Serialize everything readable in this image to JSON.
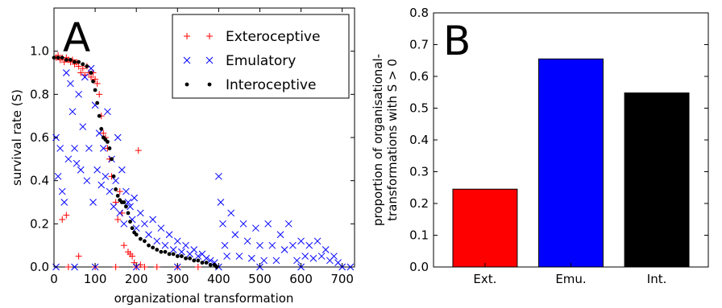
{
  "chart_data": [
    {
      "type": "scatter",
      "panel_label": "A",
      "xlabel": "organizational transformation",
      "ylabel": "survival rate (S)",
      "xlim": [
        0,
        730
      ],
      "ylim": [
        0,
        1.2
      ],
      "x_ticks": [
        "0",
        "100",
        "200",
        "300",
        "400",
        "500",
        "600",
        "700"
      ],
      "y_ticks": [
        "0.0",
        "0.2",
        "0.4",
        "0.6",
        "0.8",
        "1.0"
      ],
      "legend_position": "top-right",
      "series": [
        {
          "name": "Exteroceptive",
          "marker": "+",
          "color": "#ff0000",
          "points": [
            [
              5,
              0.97
            ],
            [
              10,
              0.98
            ],
            [
              15,
              0.96
            ],
            [
              20,
              0.97
            ],
            [
              25,
              0.95
            ],
            [
              30,
              0.97
            ],
            [
              35,
              0.96
            ],
            [
              40,
              0.95
            ],
            [
              45,
              0.96
            ],
            [
              50,
              0.94
            ],
            [
              55,
              0.95
            ],
            [
              60,
              0.93
            ],
            [
              65,
              0.9
            ],
            [
              70,
              0.92
            ],
            [
              75,
              0.89
            ],
            [
              80,
              0.93
            ],
            [
              85,
              0.9
            ],
            [
              90,
              0.88
            ],
            [
              95,
              0.9
            ],
            [
              100,
              0.87
            ],
            [
              105,
              0.85
            ],
            [
              110,
              0.8
            ],
            [
              115,
              0.7
            ],
            [
              120,
              0.62
            ],
            [
              125,
              0.6
            ],
            [
              130,
              0.55
            ],
            [
              135,
              0.5
            ],
            [
              140,
              0.42
            ],
            [
              150,
              0.3
            ],
            [
              155,
              0.22
            ],
            [
              160,
              0.35
            ],
            [
              165,
              0.25
            ],
            [
              170,
              0.1
            ],
            [
              180,
              0.07
            ],
            [
              185,
              0.06
            ],
            [
              190,
              0.05
            ],
            [
              195,
              0.02
            ],
            [
              205,
              0.54
            ],
            [
              210,
              0.01
            ],
            [
              220,
              0.0
            ],
            [
              30,
              0.24
            ],
            [
              20,
              0.22
            ],
            [
              35,
              0.0
            ],
            [
              60,
              0.05
            ],
            [
              100,
              0.0
            ],
            [
              150,
              0.0
            ],
            [
              200,
              0.0
            ],
            [
              250,
              0.0
            ],
            [
              300,
              0.0
            ],
            [
              350,
              0.0
            ]
          ]
        },
        {
          "name": "Emulatory",
          "marker": "x",
          "color": "#0000ff",
          "points": [
            [
              5,
              0.6
            ],
            [
              10,
              0.42
            ],
            [
              15,
              0.55
            ],
            [
              20,
              0.35
            ],
            [
              25,
              0.3
            ],
            [
              30,
              0.9
            ],
            [
              35,
              0.5
            ],
            [
              40,
              0.85
            ],
            [
              45,
              0.72
            ],
            [
              50,
              0.55
            ],
            [
              55,
              0.48
            ],
            [
              60,
              0.8
            ],
            [
              65,
              0.45
            ],
            [
              70,
              0.65
            ],
            [
              75,
              0.88
            ],
            [
              80,
              0.4
            ],
            [
              85,
              0.55
            ],
            [
              90,
              0.92
            ],
            [
              95,
              0.3
            ],
            [
              100,
              0.75
            ],
            [
              105,
              0.45
            ],
            [
              110,
              0.62
            ],
            [
              115,
              0.38
            ],
            [
              120,
              0.55
            ],
            [
              125,
              0.42
            ],
            [
              130,
              0.72
            ],
            [
              135,
              0.35
            ],
            [
              140,
              0.5
            ],
            [
              145,
              0.28
            ],
            [
              150,
              0.4
            ],
            [
              155,
              0.6
            ],
            [
              160,
              0.25
            ],
            [
              165,
              0.45
            ],
            [
              170,
              0.2
            ],
            [
              175,
              0.35
            ],
            [
              180,
              0.3
            ],
            [
              185,
              0.28
            ],
            [
              190,
              0.22
            ],
            [
              195,
              0.32
            ],
            [
              200,
              0.18
            ],
            [
              210,
              0.25
            ],
            [
              220,
              0.2
            ],
            [
              230,
              0.15
            ],
            [
              240,
              0.22
            ],
            [
              250,
              0.12
            ],
            [
              260,
              0.18
            ],
            [
              270,
              0.1
            ],
            [
              280,
              0.15
            ],
            [
              290,
              0.08
            ],
            [
              300,
              0.12
            ],
            [
              310,
              0.07
            ],
            [
              320,
              0.1
            ],
            [
              330,
              0.06
            ],
            [
              340,
              0.08
            ],
            [
              350,
              0.05
            ],
            [
              360,
              0.06
            ],
            [
              370,
              0.04
            ],
            [
              380,
              0.03
            ],
            [
              390,
              0.02
            ],
            [
              400,
              0.42
            ],
            [
              405,
              0.3
            ],
            [
              410,
              0.2
            ],
            [
              415,
              0.1
            ],
            [
              420,
              0.05
            ],
            [
              430,
              0.25
            ],
            [
              440,
              0.15
            ],
            [
              450,
              0.05
            ],
            [
              460,
              0.2
            ],
            [
              470,
              0.12
            ],
            [
              480,
              0.04
            ],
            [
              490,
              0.18
            ],
            [
              500,
              0.1
            ],
            [
              510,
              0.03
            ],
            [
              520,
              0.2
            ],
            [
              530,
              0.1
            ],
            [
              540,
              0.03
            ],
            [
              550,
              0.15
            ],
            [
              560,
              0.08
            ],
            [
              570,
              0.2
            ],
            [
              580,
              0.1
            ],
            [
              590,
              0.03
            ],
            [
              600,
              0.12
            ],
            [
              610,
              0.05
            ],
            [
              620,
              0.1
            ],
            [
              630,
              0.04
            ],
            [
              640,
              0.12
            ],
            [
              650,
              0.05
            ],
            [
              660,
              0.08
            ],
            [
              670,
              0.03
            ],
            [
              680,
              0.05
            ],
            [
              690,
              0.02
            ],
            [
              700,
              0.0
            ],
            [
              720,
              0.0
            ],
            [
              5,
              0.0
            ],
            [
              50,
              0.0
            ],
            [
              100,
              0.0
            ],
            [
              200,
              0.0
            ],
            [
              300,
              0.0
            ],
            [
              400,
              0.0
            ],
            [
              500,
              0.0
            ],
            [
              600,
              0.0
            ]
          ]
        },
        {
          "name": "Interoceptive",
          "marker": "dot",
          "color": "#000000",
          "points": [
            [
              0,
              0.97
            ],
            [
              10,
              0.97
            ],
            [
              20,
              0.97
            ],
            [
              30,
              0.96
            ],
            [
              40,
              0.96
            ],
            [
              50,
              0.95
            ],
            [
              60,
              0.95
            ],
            [
              70,
              0.94
            ],
            [
              80,
              0.93
            ],
            [
              90,
              0.9
            ],
            [
              95,
              0.86
            ],
            [
              100,
              0.82
            ],
            [
              105,
              0.76
            ],
            [
              110,
              0.7
            ],
            [
              115,
              0.64
            ],
            [
              120,
              0.6
            ],
            [
              125,
              0.59
            ],
            [
              130,
              0.58
            ],
            [
              135,
              0.55
            ],
            [
              140,
              0.5
            ],
            [
              145,
              0.42
            ],
            [
              150,
              0.36
            ],
            [
              155,
              0.33
            ],
            [
              160,
              0.31
            ],
            [
              165,
              0.3
            ],
            [
              170,
              0.3
            ],
            [
              175,
              0.28
            ],
            [
              180,
              0.25
            ],
            [
              185,
              0.21
            ],
            [
              190,
              0.18
            ],
            [
              195,
              0.16
            ],
            [
              200,
              0.15
            ],
            [
              210,
              0.13
            ],
            [
              220,
              0.12
            ],
            [
              230,
              0.1
            ],
            [
              240,
              0.09
            ],
            [
              250,
              0.08
            ],
            [
              260,
              0.07
            ],
            [
              270,
              0.07
            ],
            [
              280,
              0.06
            ],
            [
              290,
              0.06
            ],
            [
              300,
              0.05
            ],
            [
              310,
              0.05
            ],
            [
              320,
              0.04
            ],
            [
              330,
              0.04
            ],
            [
              340,
              0.03
            ],
            [
              350,
              0.03
            ],
            [
              360,
              0.02
            ],
            [
              370,
              0.02
            ],
            [
              380,
              0.01
            ],
            [
              390,
              0.01
            ],
            [
              395,
              0.0
            ]
          ]
        }
      ]
    },
    {
      "type": "bar",
      "panel_label": "B",
      "xlabel": "",
      "ylabel": "proportion of organisational-transformations with S > 0",
      "ylabel_lines": [
        "proportion of organisational-",
        "transformations with S > 0"
      ],
      "categories": [
        "Ext.",
        "Emu.",
        "Int."
      ],
      "values": [
        0.245,
        0.655,
        0.548
      ],
      "colors": [
        "#ff0000",
        "#0000ff",
        "#000000"
      ],
      "ylim": [
        0,
        0.8
      ],
      "y_ticks": [
        "0.0",
        "0.1",
        "0.2",
        "0.3",
        "0.4",
        "0.5",
        "0.6",
        "0.7",
        "0.8"
      ]
    }
  ]
}
